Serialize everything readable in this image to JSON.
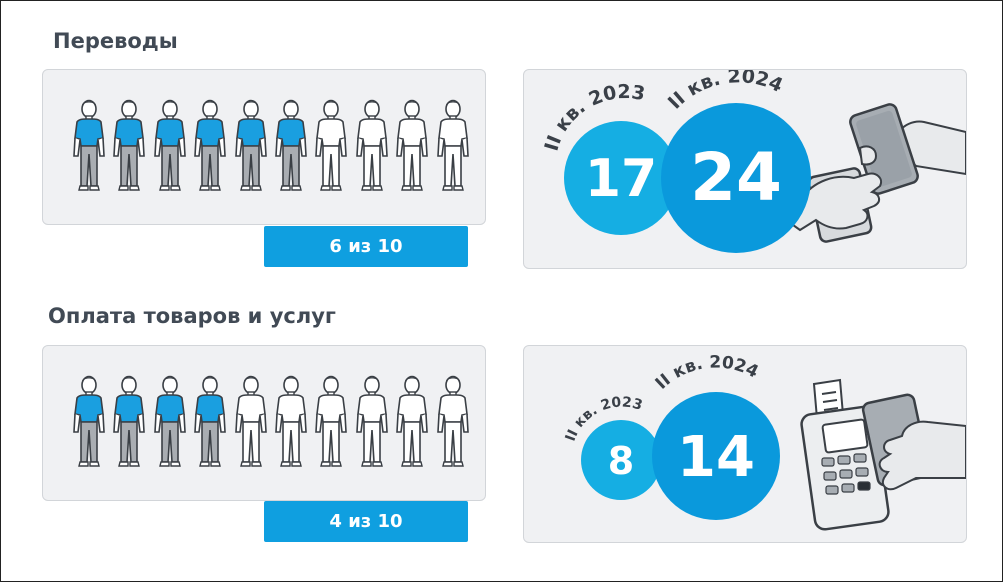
{
  "sections": [
    {
      "title": "Переводы",
      "people_total": 10,
      "people_highlighted": 6,
      "share_label": "6 из 10",
      "bubbles": [
        {
          "period": "II кв. 2023",
          "value": "17",
          "color": "#15aee3"
        },
        {
          "period": "II кв. 2024",
          "value": "24",
          "color": "#0a99dc"
        }
      ],
      "illustration": "phone-to-phone-transfer"
    },
    {
      "title": "Оплата товаров и услуг",
      "people_total": 10,
      "people_highlighted": 4,
      "share_label": "4 из 10",
      "bubbles": [
        {
          "period": "II кв. 2023",
          "value": "8",
          "color": "#15aee3"
        },
        {
          "period": "II кв. 2024",
          "value": "14",
          "color": "#0a99dc"
        }
      ],
      "illustration": "phone-pay-terminal"
    }
  ],
  "colors": {
    "accent": "#0f9fe0",
    "shirt_blue": "#1a9fe0",
    "panel_bg": "#f0f1f3",
    "title": "#414a55"
  }
}
